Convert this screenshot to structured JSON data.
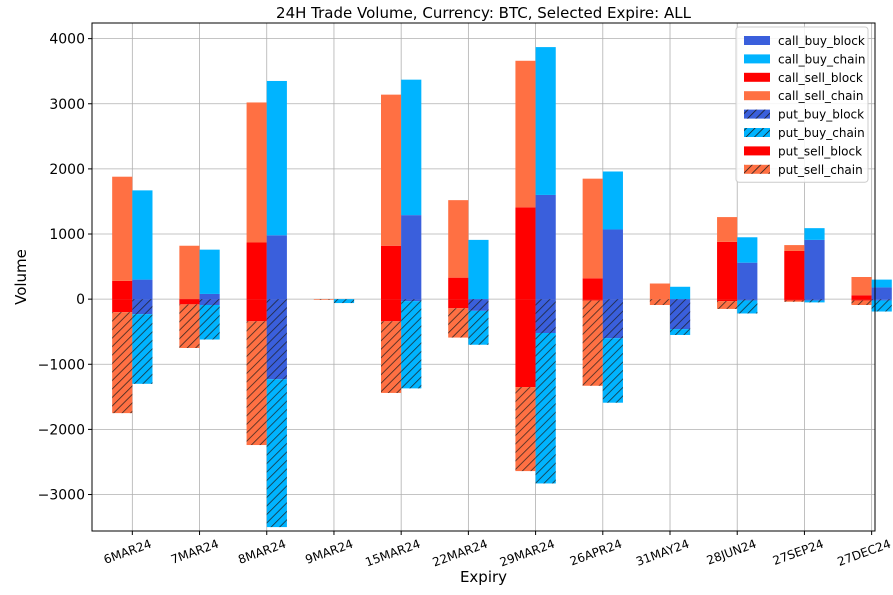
{
  "chart_data": {
    "type": "bar",
    "stacked": true,
    "title": "24H Trade Volume, Currency: BTC, Selected Expire: ALL",
    "xlabel": "Expiry",
    "ylabel": "Volume",
    "ylim": [
      -3560,
      4240
    ],
    "yticks": [
      -3000,
      -2000,
      -1000,
      0,
      1000,
      2000,
      3000,
      4000
    ],
    "ytick_labels": [
      "−3000",
      "−2000",
      "−1000",
      "0",
      "1000",
      "2000",
      "3000",
      "4000"
    ],
    "grid": true,
    "legend_position": "top-right",
    "categories": [
      "6MAR24",
      "7MAR24",
      "8MAR24",
      "9MAR24",
      "15MAR24",
      "22MAR24",
      "29MAR24",
      "26APR24",
      "31MAY24",
      "28JUN24",
      "27SEP24",
      "27DEC24"
    ],
    "series": [
      {
        "name": "call_buy_block",
        "group": "buy",
        "sign": "positive",
        "color": "#3a5fdc",
        "hatch": false,
        "values": [
          300,
          80,
          980,
          0,
          1290,
          0,
          1600,
          1070,
          0,
          560,
          910,
          180
        ]
      },
      {
        "name": "call_buy_chain",
        "group": "buy",
        "sign": "positive",
        "color": "#00b4ff",
        "hatch": false,
        "values": [
          1370,
          680,
          2370,
          0,
          2080,
          910,
          2270,
          890,
          190,
          390,
          180,
          120
        ]
      },
      {
        "name": "call_sell_block",
        "group": "sell",
        "sign": "positive",
        "color": "#ff0000",
        "hatch": false,
        "values": [
          280,
          0,
          870,
          0,
          820,
          330,
          1410,
          320,
          0,
          880,
          740,
          60
        ]
      },
      {
        "name": "call_sell_chain",
        "group": "sell",
        "sign": "positive",
        "color": "#ff7043",
        "hatch": false,
        "values": [
          1600,
          820,
          2150,
          0,
          2320,
          1190,
          2250,
          1530,
          240,
          380,
          90,
          280
        ]
      },
      {
        "name": "put_buy_block",
        "group": "buy",
        "sign": "negative",
        "color": "#3a5fdc",
        "hatch": true,
        "values": [
          -230,
          -90,
          -1230,
          0,
          -30,
          -180,
          -520,
          -600,
          -460,
          -20,
          -20,
          -20
        ]
      },
      {
        "name": "put_buy_chain",
        "group": "buy",
        "sign": "negative",
        "color": "#00b4ff",
        "hatch": true,
        "values": [
          -1070,
          -530,
          -2270,
          -60,
          -1340,
          -520,
          -2310,
          -990,
          -90,
          -200,
          -30,
          -170
        ]
      },
      {
        "name": "put_sell_block",
        "group": "sell",
        "sign": "negative",
        "color": "#ff0000",
        "hatch": false,
        "values": [
          -200,
          -80,
          -340,
          0,
          -340,
          -140,
          -1350,
          -20,
          0,
          -30,
          -20,
          -20
        ]
      },
      {
        "name": "put_sell_chain",
        "group": "sell",
        "sign": "negative",
        "color": "#ff7043",
        "hatch": true,
        "values": [
          -1550,
          -670,
          -1900,
          -10,
          -1100,
          -450,
          -1290,
          -1310,
          -90,
          -120,
          -20,
          -70
        ]
      }
    ]
  }
}
